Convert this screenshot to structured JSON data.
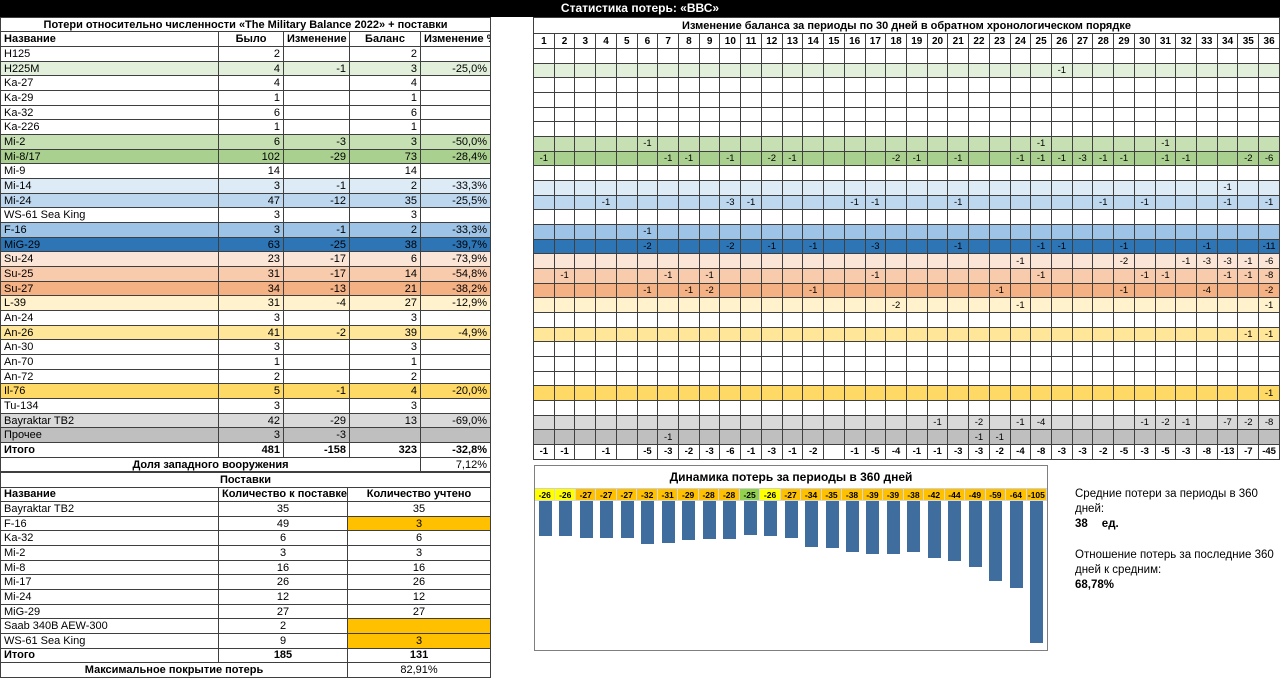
{
  "title": "Статистика потерь: «ВВС»",
  "left_table": {
    "title": "Потери относительно численности «The Military Balance 2022» + поставки",
    "headers": [
      "Название",
      "Было",
      "Изменение",
      "Баланс",
      "Изменение %"
    ],
    "rows": [
      {
        "name": "H125",
        "was": "2",
        "change": "",
        "balance": "2",
        "pct": "",
        "color": "#FFFFFF",
        "cells": {}
      },
      {
        "name": "H225M",
        "was": "4",
        "change": "-1",
        "balance": "3",
        "pct": "-25,0%",
        "color": "#E2EFDA",
        "cells": {
          "26": "-1"
        }
      },
      {
        "name": "Ka-27",
        "was": "4",
        "change": "",
        "balance": "4",
        "pct": "",
        "color": "#FFFFFF",
        "cells": {}
      },
      {
        "name": "Ka-29",
        "was": "1",
        "change": "",
        "balance": "1",
        "pct": "",
        "color": "#FFFFFF",
        "cells": {}
      },
      {
        "name": "Ka-32",
        "was": "6",
        "change": "",
        "balance": "6",
        "pct": "",
        "color": "#FFFFFF",
        "cells": {}
      },
      {
        "name": "Ka-226",
        "was": "1",
        "change": "",
        "balance": "1",
        "pct": "",
        "color": "#FFFFFF",
        "cells": {}
      },
      {
        "name": "Mi-2",
        "was": "6",
        "change": "-3",
        "balance": "3",
        "pct": "-50,0%",
        "color": "#C6E0B4",
        "cells": {
          "6": "-1",
          "25": "-1",
          "31": "-1"
        }
      },
      {
        "name": "Mi-8/17",
        "was": "102",
        "change": "-29",
        "balance": "73",
        "pct": "-28,4%",
        "color": "#A9D08E",
        "cells": {
          "1": "-1",
          "7": "-1",
          "8": "-1",
          "10": "-1",
          "12": "-2",
          "13": "-1",
          "18": "-2",
          "19": "-1",
          "21": "-1",
          "24": "-1",
          "25": "-1",
          "26": "-1",
          "27": "-3",
          "28": "-1",
          "29": "-1",
          "31": "-1",
          "32": "-1",
          "35": "-2",
          "36": "-6"
        }
      },
      {
        "name": "Mi-9",
        "was": "14",
        "change": "",
        "balance": "14",
        "pct": "",
        "color": "#FFFFFF",
        "cells": {}
      },
      {
        "name": "Mi-14",
        "was": "3",
        "change": "-1",
        "balance": "2",
        "pct": "-33,3%",
        "color": "#DDEBF7",
        "cells": {
          "34": "-1"
        }
      },
      {
        "name": "Mi-24",
        "was": "47",
        "change": "-12",
        "balance": "35",
        "pct": "-25,5%",
        "color": "#BDD7EE",
        "cells": {
          "4": "-1",
          "10": "-3",
          "11": "-1",
          "16": "-1",
          "17": "-1",
          "21": "-1",
          "28": "-1",
          "30": "-1",
          "34": "-1",
          "36": "-1"
        }
      },
      {
        "name": "WS-61 Sea King",
        "was": "3",
        "change": "",
        "balance": "3",
        "pct": "",
        "color": "#FFFFFF",
        "cells": {}
      },
      {
        "name": "F-16",
        "was": "3",
        "change": "-1",
        "balance": "2",
        "pct": "-33,3%",
        "color": "#9DC3E6",
        "cells": {
          "6": "-1"
        }
      },
      {
        "name": "MiG-29",
        "was": "63",
        "change": "-25",
        "balance": "38",
        "pct": "-39,7%",
        "color": "#2E75B6",
        "cells": {
          "6": "-2",
          "10": "-2",
          "12": "-1",
          "14": "-1",
          "17": "-3",
          "21": "-1",
          "25": "-1",
          "26": "-1",
          "29": "-1",
          "33": "-1",
          "36": "-11"
        }
      },
      {
        "name": "Su-24",
        "was": "23",
        "change": "-17",
        "balance": "6",
        "pct": "-73,9%",
        "color": "#FBE5D6",
        "cells": {
          "24": "-1",
          "29": "-2",
          "32": "-1",
          "33": "-3",
          "34": "-3",
          "35": "-1",
          "36": "-6"
        }
      },
      {
        "name": "Su-25",
        "was": "31",
        "change": "-17",
        "balance": "14",
        "pct": "-54,8%",
        "color": "#F8CBAD",
        "cells": {
          "2": "-1",
          "7": "-1",
          "9": "-1",
          "17": "-1",
          "25": "-1",
          "30": "-1",
          "31": "-1",
          "34": "-1",
          "35": "-1",
          "36": "-8"
        }
      },
      {
        "name": "Su-27",
        "was": "34",
        "change": "-13",
        "balance": "21",
        "pct": "-38,2%",
        "color": "#F4B183",
        "cells": {
          "6": "-1",
          "8": "-1",
          "9": "-2",
          "14": "-1",
          "23": "-1",
          "29": "-1",
          "33": "-4",
          "36": "-2"
        }
      },
      {
        "name": "L-39",
        "was": "31",
        "change": "-4",
        "balance": "27",
        "pct": "-12,9%",
        "color": "#FFF2CC",
        "cells": {
          "18": "-2",
          "24": "-1",
          "36": "-1"
        }
      },
      {
        "name": "An-24",
        "was": "3",
        "change": "",
        "balance": "3",
        "pct": "",
        "color": "#FFFFFF",
        "cells": {}
      },
      {
        "name": "An-26",
        "was": "41",
        "change": "-2",
        "balance": "39",
        "pct": "-4,9%",
        "color": "#FFE699",
        "cells": {
          "35": "-1",
          "36": "-1"
        }
      },
      {
        "name": "An-30",
        "was": "3",
        "change": "",
        "balance": "3",
        "pct": "",
        "color": "#FFFFFF",
        "cells": {}
      },
      {
        "name": "An-70",
        "was": "1",
        "change": "",
        "balance": "1",
        "pct": "",
        "color": "#FFFFFF",
        "cells": {}
      },
      {
        "name": "An-72",
        "was": "2",
        "change": "",
        "balance": "2",
        "pct": "",
        "color": "#FFFFFF",
        "cells": {}
      },
      {
        "name": "Il-76",
        "was": "5",
        "change": "-1",
        "balance": "4",
        "pct": "-20,0%",
        "color": "#FFD966",
        "cells": {
          "36": "-1"
        }
      },
      {
        "name": "Tu-134",
        "was": "3",
        "change": "",
        "balance": "3",
        "pct": "",
        "color": "#FFFFFF",
        "cells": {}
      },
      {
        "name": "Bayraktar TB2",
        "was": "42",
        "change": "-29",
        "balance": "13",
        "pct": "-69,0%",
        "color": "#D9D9D9",
        "cells": {
          "20": "-1",
          "22": "-2",
          "24": "-1",
          "25": "-4",
          "30": "-1",
          "31": "-2",
          "32": "-1",
          "34": "-7",
          "35": "-2",
          "36": "-8"
        }
      },
      {
        "name": "Прочее",
        "was": "3",
        "change": "-3",
        "balance": "",
        "pct": "",
        "color": "#BFBFBF",
        "cells": {
          "7": "-1",
          "22": "-1",
          "23": "-1"
        }
      }
    ],
    "total": {
      "name": "Итого",
      "was": "481",
      "change": "-158",
      "balance": "323",
      "pct": "-32,8%"
    },
    "share_label": "Доля западного вооружения",
    "share_value": "7,12%"
  },
  "grid": {
    "title": "Изменение баланса за периоды по 30 дней в обратном хронологическом порядке",
    "num_columns": 36,
    "totals": {
      "1": "-1",
      "2": "-1",
      "4": "-1",
      "6": "-5",
      "7": "-3",
      "8": "-2",
      "9": "-3",
      "10": "-6",
      "11": "-1",
      "12": "-3",
      "13": "-1",
      "14": "-2",
      "16": "-1",
      "17": "-5",
      "18": "-4",
      "19": "-1",
      "20": "-1",
      "21": "-3",
      "22": "-3",
      "23": "-2",
      "24": "-4",
      "25": "-8",
      "26": "-3",
      "27": "-3",
      "28": "-2",
      "29": "-5",
      "30": "-3",
      "31": "-5",
      "32": "-3",
      "33": "-8",
      "34": "-13",
      "35": "-7",
      "36": "-45"
    }
  },
  "supplies_table": {
    "title": "Поставки",
    "headers": [
      "Название",
      "Количество к поставке",
      "Количество учтено"
    ],
    "highlight_color": "#FFC000",
    "rows": [
      {
        "name": "Bayraktar TB2",
        "to_supply": "35",
        "counted": "35",
        "highlighted": false
      },
      {
        "name": "F-16",
        "to_supply": "49",
        "counted": "3",
        "highlighted": true
      },
      {
        "name": "Ka-32",
        "to_supply": "6",
        "counted": "6",
        "highlighted": false
      },
      {
        "name": "Mi-2",
        "to_supply": "3",
        "counted": "3",
        "highlighted": false
      },
      {
        "name": "Mi-8",
        "to_supply": "16",
        "counted": "16",
        "highlighted": false
      },
      {
        "name": "Mi-17",
        "to_supply": "26",
        "counted": "26",
        "highlighted": false
      },
      {
        "name": "Mi-24",
        "to_supply": "12",
        "counted": "12",
        "highlighted": false
      },
      {
        "name": "MiG-29",
        "to_supply": "27",
        "counted": "27",
        "highlighted": false
      },
      {
        "name": "Saab 340B AEW-300",
        "to_supply": "2",
        "counted": "",
        "highlighted": true
      },
      {
        "name": "WS-61 Sea King",
        "to_supply": "9",
        "counted": "3",
        "highlighted": true
      }
    ],
    "total": {
      "name": "Итого",
      "to_supply": "185",
      "counted": "131"
    },
    "coverage_label": "Максимальное покрытие потерь",
    "coverage_value": "82,91%"
  },
  "chart_data": {
    "type": "bar",
    "title": "Динамика потерь за периоды в 360 дней",
    "values": [
      -26,
      -26,
      -27,
      -27,
      -27,
      -32,
      -31,
      -29,
      -28,
      -28,
      -25,
      -26,
      -27,
      -34,
      -35,
      -38,
      -39,
      -39,
      -38,
      -42,
      -44,
      -49,
      -59,
      -64,
      -105
    ],
    "cell_colors": [
      "#FFFF00",
      "#FFFF00",
      "#FFC000",
      "#FFC000",
      "#FFC000",
      "#FFC000",
      "#FFC000",
      "#FFC000",
      "#FFC000",
      "#FFC000",
      "#92D050",
      "#FFFF00",
      "#FFC000",
      "#FFC000",
      "#FFC000",
      "#FFC000",
      "#FFC000",
      "#FFC000",
      "#FFC000",
      "#FFC000",
      "#FFC000",
      "#FFC000",
      "#FFC000",
      "#FFC000",
      "#FFC000"
    ],
    "bar_color": "#3E6D9E",
    "ylim": [
      -105,
      0
    ],
    "legend_position": "none"
  },
  "notes": {
    "avg_label": "Средние потери за периоды в 360 дней:",
    "avg_value": "38",
    "avg_unit": "ед.",
    "ratio_label": "Отношение потерь за последние 360 дней к средним:",
    "ratio_value": "68,78%"
  }
}
